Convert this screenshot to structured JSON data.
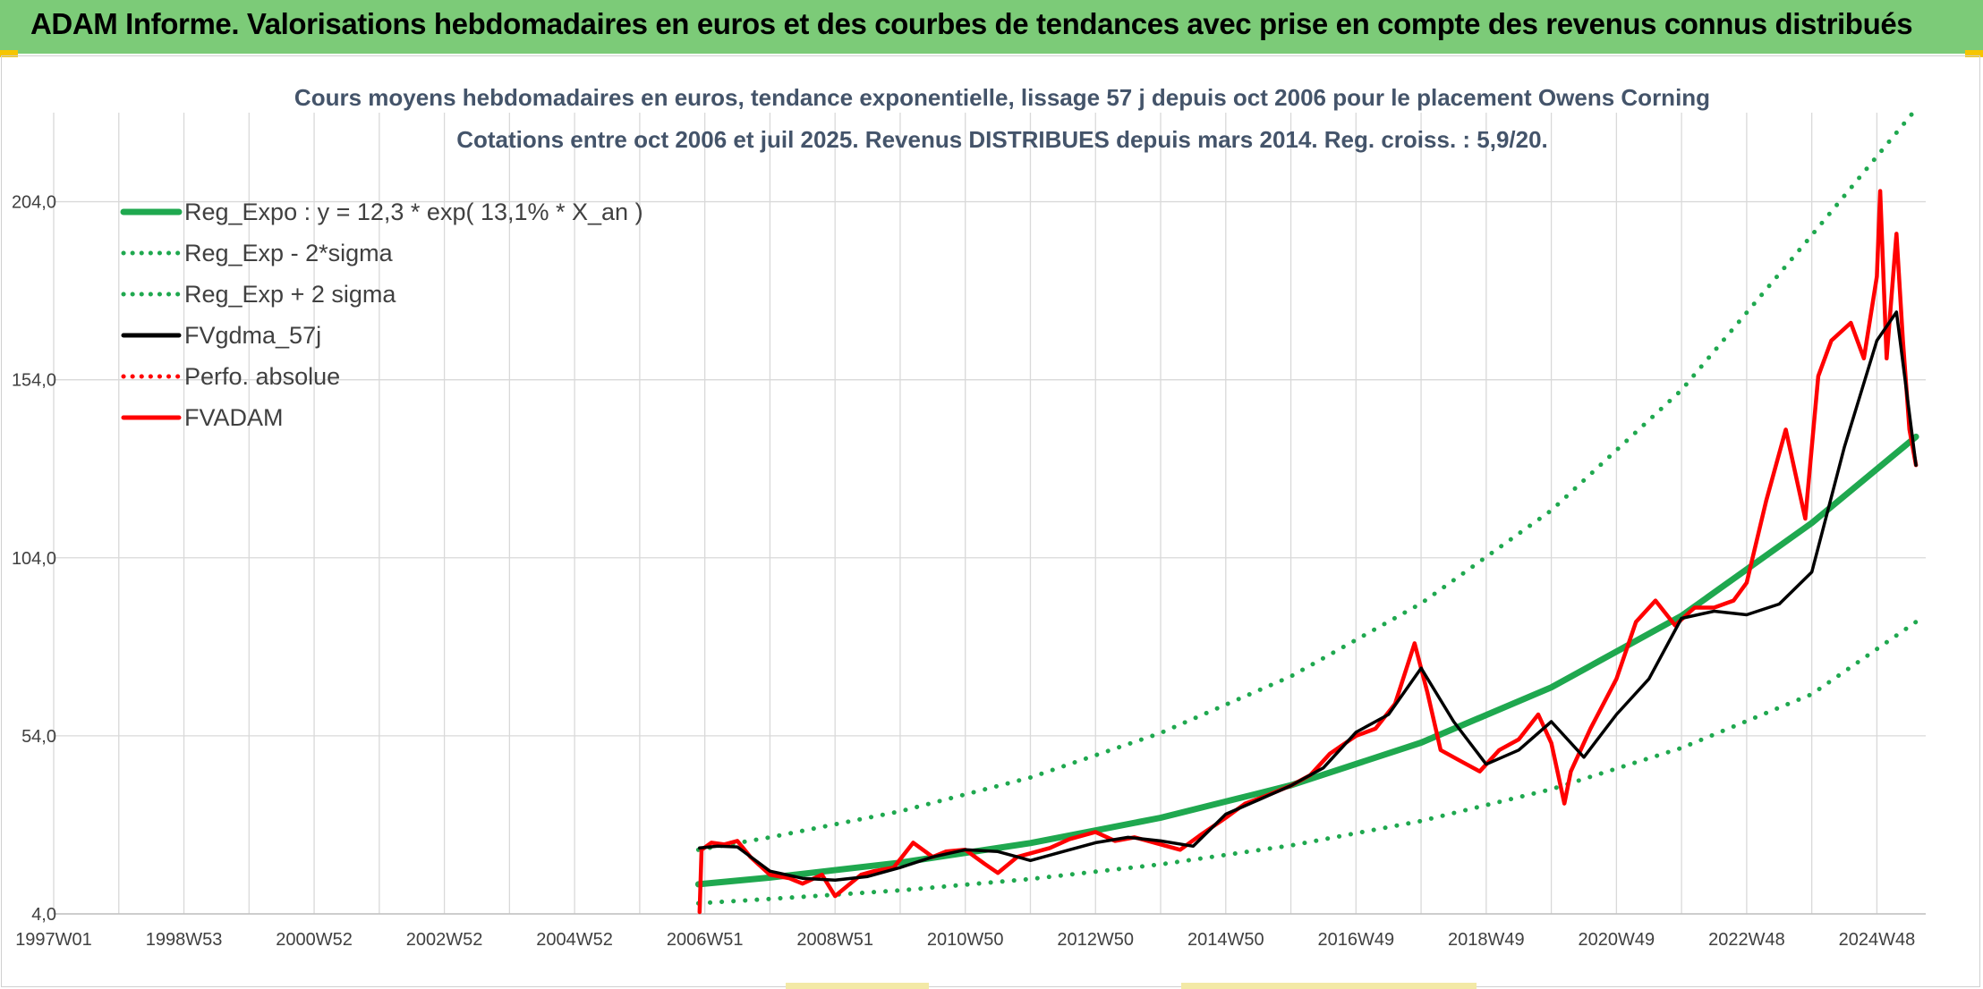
{
  "header": {
    "banner_title": "ADAM Informe. Valorisations hebdomadaires en euros et des courbes de tendances avec prise en compte des revenus connus distribués"
  },
  "colors": {
    "banner": "#7ccb78",
    "regression": "#1fa84f",
    "sigma": "#1fa84f",
    "moving_average": "#000000",
    "fvadam": "#ff0000",
    "grid": "#d9d9d9"
  },
  "chart_data": {
    "type": "line",
    "title_line1": "Cours moyens hebdomadaires en euros, tendance exponentielle, lissage 57 j depuis oct 2006 pour le placement Owens Corning",
    "title_line2": "Cotations entre oct 2006 et juil 2025. Revenus DISTRIBUES depuis mars 2014. Reg. croiss. : 5,9/20.",
    "ylim": [
      4,
      229
    ],
    "xlim": [
      1997.0,
      2025.75
    ],
    "y_ticks": [
      "4,0",
      "54,0",
      "104,0",
      "154,0",
      "204,0"
    ],
    "y_tick_values": [
      4,
      54,
      104,
      154,
      204
    ],
    "x_ticks": [
      {
        "label": "1997W01",
        "x": 1997.0
      },
      {
        "label": "1998W53",
        "x": 1999.0
      },
      {
        "label": "2000W52",
        "x": 2001.0
      },
      {
        "label": "2002W52",
        "x": 2003.0
      },
      {
        "label": "2004W52",
        "x": 2005.0
      },
      {
        "label": "2006W51",
        "x": 2007.0
      },
      {
        "label": "2008W51",
        "x": 2009.0
      },
      {
        "label": "2010W50",
        "x": 2011.0
      },
      {
        "label": "2012W50",
        "x": 2013.0
      },
      {
        "label": "2014W50",
        "x": 2015.0
      },
      {
        "label": "2016W49",
        "x": 2017.0
      },
      {
        "label": "2018W49",
        "x": 2019.0
      },
      {
        "label": "2020W49",
        "x": 2021.0
      },
      {
        "label": "2022W48",
        "x": 2023.0
      },
      {
        "label": "2024W48",
        "x": 2025.0
      }
    ],
    "grid": true,
    "legend_position": "top-left",
    "legend": [
      {
        "key": "reg_expo",
        "label": "Reg_Expo : y = 12,3 * exp( 13,1% *  X_an )",
        "style": "solid",
        "color": "#1fa84f"
      },
      {
        "key": "reg_minus",
        "label": "Reg_Exp - 2*sigma",
        "style": "dotted",
        "color": "#1fa84f"
      },
      {
        "key": "reg_plus",
        "label": "Reg_Exp + 2 sigma",
        "style": "dotted",
        "color": "#1fa84f"
      },
      {
        "key": "fvgdma",
        "label": "FVgdma_57j",
        "style": "solid",
        "color": "#000000"
      },
      {
        "key": "perfo",
        "label": "Perfo. absolue",
        "style": "dotted",
        "color": "#ff0000"
      },
      {
        "key": "fvadam",
        "label": "FVADAM",
        "style": "solid",
        "color": "#ff0000"
      }
    ],
    "series": [
      {
        "key": "reg_expo",
        "x": [
          2006.9,
          2008,
          2010,
          2012,
          2014,
          2016,
          2018,
          2020,
          2022,
          2024,
          2025.6
        ],
        "values": [
          12.3,
          14.2,
          18.4,
          23.9,
          31.0,
          40.1,
          52.1,
          67.6,
          87.7,
          113.8,
          138.0
        ]
      },
      {
        "key": "reg_minus",
        "x": [
          2006.9,
          2008,
          2010,
          2012,
          2014,
          2016,
          2018,
          2020,
          2022,
          2024,
          2025.6
        ],
        "values": [
          7.0,
          8.2,
          10.6,
          13.8,
          17.9,
          23.2,
          30.1,
          39.0,
          50.6,
          65.7,
          86.0
        ]
      },
      {
        "key": "reg_plus",
        "x": [
          2006.9,
          2008,
          2010,
          2012,
          2014,
          2016,
          2018,
          2020,
          2022,
          2024,
          2025.6
        ],
        "values": [
          22.0,
          25.5,
          32.8,
          42.3,
          54.8,
          70.7,
          91.2,
          117.3,
          151.1,
          194.6,
          230.0
        ]
      },
      {
        "key": "fvgdma",
        "x": [
          2006.92,
          2007.2,
          2007.5,
          2008.0,
          2008.5,
          2009.0,
          2009.5,
          2010.0,
          2010.5,
          2011.0,
          2011.5,
          2012.0,
          2012.5,
          2013.0,
          2013.5,
          2014.0,
          2014.5,
          2015.0,
          2015.5,
          2016.0,
          2016.5,
          2017.0,
          2017.5,
          2018.0,
          2018.5,
          2019.0,
          2019.5,
          2020.0,
          2020.5,
          2021.0,
          2021.5,
          2022.0,
          2022.5,
          2023.0,
          2023.5,
          2024.0,
          2024.5,
          2025.0,
          2025.3,
          2025.6
        ],
        "values": [
          22.5,
          23.0,
          22.8,
          16.0,
          14.0,
          13.5,
          14.5,
          17.0,
          20.0,
          22.0,
          21.5,
          19.0,
          21.5,
          24.0,
          25.5,
          24.5,
          23.0,
          32.0,
          36.0,
          40.0,
          45.0,
          55.0,
          60.0,
          73.0,
          58.0,
          46.0,
          50.0,
          58.0,
          48.0,
          60.0,
          70.0,
          87.0,
          89.0,
          88.0,
          91.0,
          100.0,
          135.0,
          165.0,
          173.0,
          130.0
        ]
      },
      {
        "key": "fvadam",
        "x": [
          2006.92,
          2006.95,
          2007.1,
          2007.3,
          2007.5,
          2007.7,
          2008.0,
          2008.3,
          2008.5,
          2008.8,
          2009.0,
          2009.2,
          2009.4,
          2009.6,
          2009.9,
          2010.2,
          2010.5,
          2010.7,
          2011.0,
          2011.3,
          2011.5,
          2011.8,
          2012.0,
          2012.3,
          2012.6,
          2013.0,
          2013.3,
          2013.6,
          2014.0,
          2014.3,
          2014.6,
          2015.0,
          2015.3,
          2015.6,
          2016.0,
          2016.3,
          2016.6,
          2017.0,
          2017.3,
          2017.6,
          2017.9,
          2018.1,
          2018.3,
          2018.6,
          2018.9,
          2019.2,
          2019.5,
          2019.8,
          2020.0,
          2020.2,
          2020.3,
          2020.6,
          2021.0,
          2021.3,
          2021.6,
          2021.9,
          2022.2,
          2022.5,
          2022.8,
          2023.0,
          2023.3,
          2023.6,
          2023.9,
          2024.1,
          2024.3,
          2024.6,
          2024.8,
          2025.0,
          2025.05,
          2025.15,
          2025.3,
          2025.4,
          2025.5,
          2025.6
        ],
        "values": [
          4.5,
          22.0,
          24.0,
          23.5,
          24.5,
          20.0,
          15.0,
          14.0,
          12.5,
          15.0,
          9.0,
          12.0,
          15.0,
          16.0,
          17.0,
          24.0,
          20.0,
          21.5,
          22.0,
          18.0,
          15.5,
          20.0,
          21.0,
          22.5,
          25.0,
          27.0,
          24.5,
          25.5,
          23.5,
          22.0,
          26.0,
          31.0,
          35.0,
          37.0,
          40.0,
          43.0,
          49.0,
          54.0,
          56.0,
          63.0,
          80.0,
          66.0,
          50.0,
          47.0,
          44.0,
          50.0,
          53.0,
          60.0,
          52.0,
          35.0,
          44.0,
          56.0,
          70.0,
          86.0,
          92.0,
          85.0,
          90.0,
          90.0,
          92.0,
          97.0,
          120.0,
          140.0,
          115.0,
          155.0,
          165.0,
          170.0,
          160.0,
          183.0,
          207.0,
          160.0,
          195.0,
          165.0,
          140.0,
          130.0
        ]
      }
    ]
  }
}
